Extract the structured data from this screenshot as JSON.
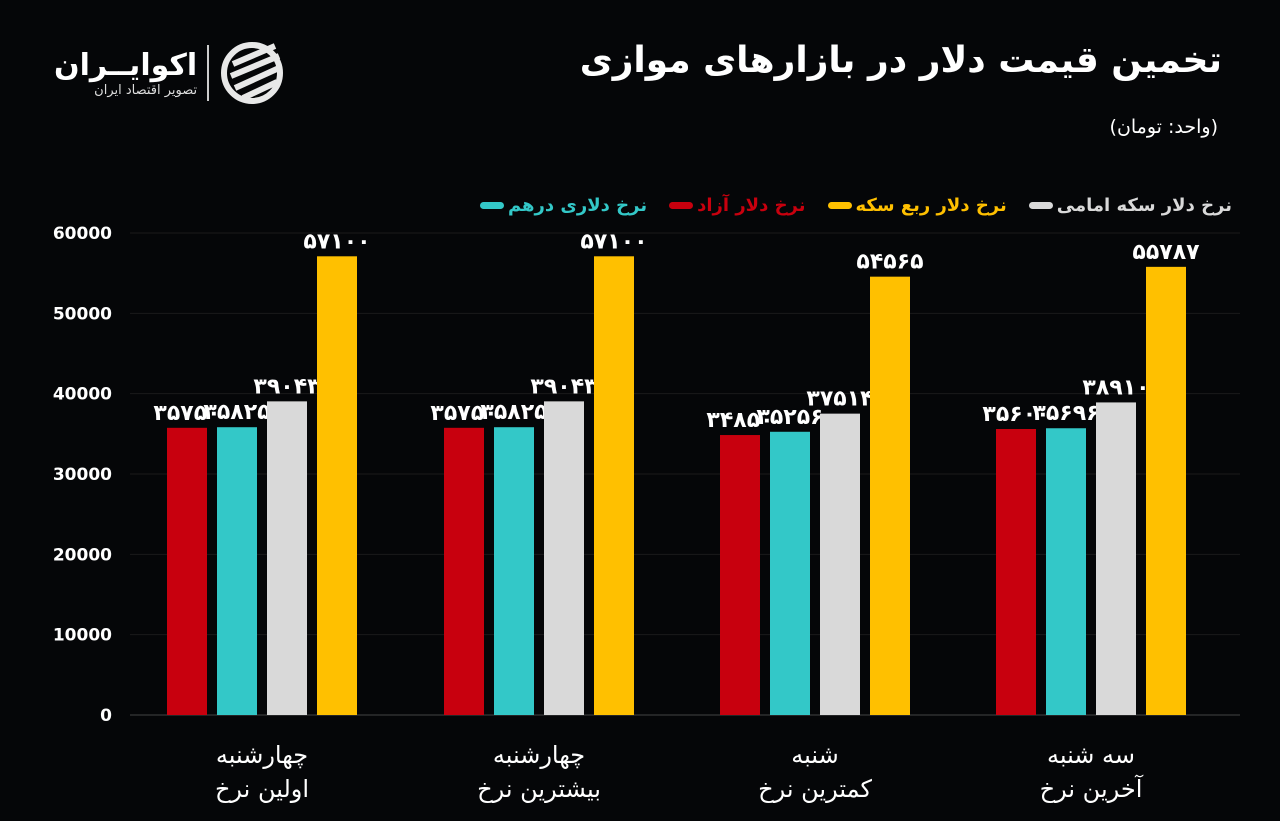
{
  "header": {
    "title": "تخمین قیمت دلار در بازارهای موازی",
    "unit": "(واحد: تومان)"
  },
  "logo": {
    "name": "اکوایــران",
    "subtitle": "تصویر اقتصاد ایران"
  },
  "chart_data": {
    "type": "bar",
    "title": "تخمین قیمت دلار در بازارهای موازی",
    "ylabel": "",
    "ylim": [
      0,
      60000
    ],
    "yticks": [
      0,
      10000,
      20000,
      30000,
      40000,
      50000,
      60000
    ],
    "ytick_labels": [
      "0",
      "10000",
      "20000",
      "30000",
      "40000",
      "50000",
      "60000"
    ],
    "grid": false,
    "legend": "top",
    "categories": [
      {
        "line1": "چهارشنبه",
        "line2": "اولین نرخ"
      },
      {
        "line1": "چهارشنبه",
        "line2": "بیشترین نرخ"
      },
      {
        "line1": "شنبه",
        "line2": "کمترین نرخ"
      },
      {
        "line1": "سه شنبه",
        "line2": "آخرین نرخ"
      }
    ],
    "series": [
      {
        "name": "نرخ دلار آزاد",
        "color": "#c8000e",
        "values": [
          35750,
          35750,
          34850,
          35600
        ],
        "labels": [
          "۳۵۷۵۰",
          "۳۵۷۵۰",
          "۳۴۸۵۰",
          "۳۵۶۰۰"
        ]
      },
      {
        "name": "نرخ دلاری درهم",
        "color": "#33c8c8",
        "values": [
          35825,
          35825,
          35256,
          35696
        ],
        "labels": [
          "۳۵۸۲۵",
          "۳۵۸۲۵",
          "۳۵۲۵۶",
          "۳۵۶۹۶"
        ]
      },
      {
        "name": "نرخ دلار سکه امامی",
        "color": "#d9d9d9",
        "values": [
          39043,
          39043,
          37514,
          38910
        ],
        "labels": [
          "۳۹۰۴۳",
          "۳۹۰۴۳",
          "۳۷۵۱۴",
          "۳۸۹۱۰"
        ]
      },
      {
        "name": "نرخ دلار ربع سکه",
        "color": "#ffc000",
        "values": [
          57100,
          57100,
          54565,
          55787
        ],
        "labels": [
          "۵۷۱۰۰",
          "۵۷۱۰۰",
          "۵۴۵۶۵",
          "۵۵۷۸۷"
        ]
      }
    ],
    "legend_order": [
      1,
      0,
      3,
      2
    ]
  }
}
